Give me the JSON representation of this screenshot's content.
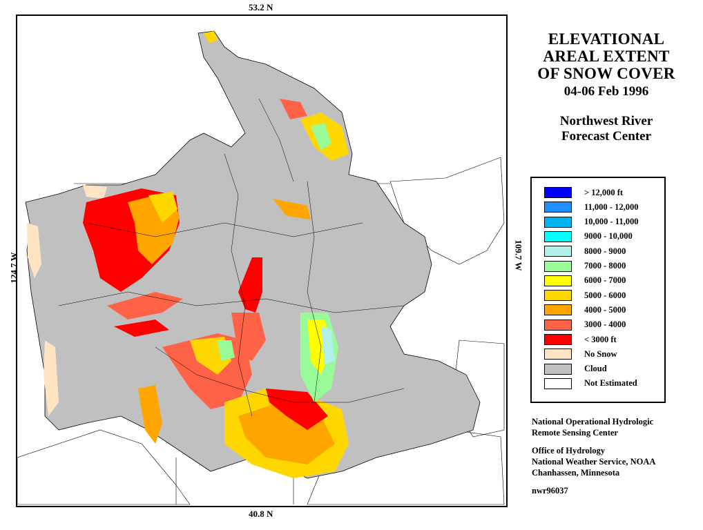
{
  "coordinates": {
    "north": "53.2 N",
    "south": "40.8 N",
    "west": "124.7 W",
    "east": "109.7 W"
  },
  "title": {
    "lines": [
      "ELEVATIONAL",
      "AREAL EXTENT",
      "OF SNOW COVER"
    ],
    "date": "04-06 Feb 1996",
    "center_lines": [
      "Northwest River",
      "Forecast Center"
    ]
  },
  "legend": [
    {
      "label": "> 12,000 ft",
      "color": "#0000ff"
    },
    {
      "label": "11,000 - 12,000",
      "color": "#1e90ff"
    },
    {
      "label": "10,000 - 11,000",
      "color": "#00b2ee"
    },
    {
      "label": "9000 - 10,000",
      "color": "#00ffff"
    },
    {
      "label": "8000 - 9000",
      "color": "#b0f0e8"
    },
    {
      "label": "7000 - 8000",
      "color": "#98fb98"
    },
    {
      "label": "6000 - 7000",
      "color": "#ffff00"
    },
    {
      "label": "5000 - 6000",
      "color": "#ffd700"
    },
    {
      "label": "4000 - 5000",
      "color": "#ffa500"
    },
    {
      "label": "3000 - 4000",
      "color": "#ff6347"
    },
    {
      "label": "< 3000 ft",
      "color": "#ff0000"
    },
    {
      "label": "No Snow",
      "color": "#ffe4c4"
    },
    {
      "label": "Cloud",
      "color": "#c0c0c0"
    },
    {
      "label": "Not Estimated",
      "color": "#ffffff"
    }
  ],
  "credits": {
    "org1": [
      "National Operational Hydrologic",
      "Remote Sensing Center"
    ],
    "org2": [
      "Office of Hydrology",
      "National Weather Service, NOAA",
      "Chanhassen, Minnesota"
    ],
    "product_code": "nwr96037"
  },
  "colors": {
    "cloud": "#c0c0c0",
    "no_snow": "#ffe4c4",
    "snow_low": "#ff0000",
    "snow_3000": "#ff6347",
    "snow_4000": "#ffa500",
    "snow_5000": "#ffd700",
    "snow_6000": "#ffff00",
    "snow_7000": "#98fb98",
    "snow_8000": "#b0f0e8",
    "boundary": "#000000"
  }
}
